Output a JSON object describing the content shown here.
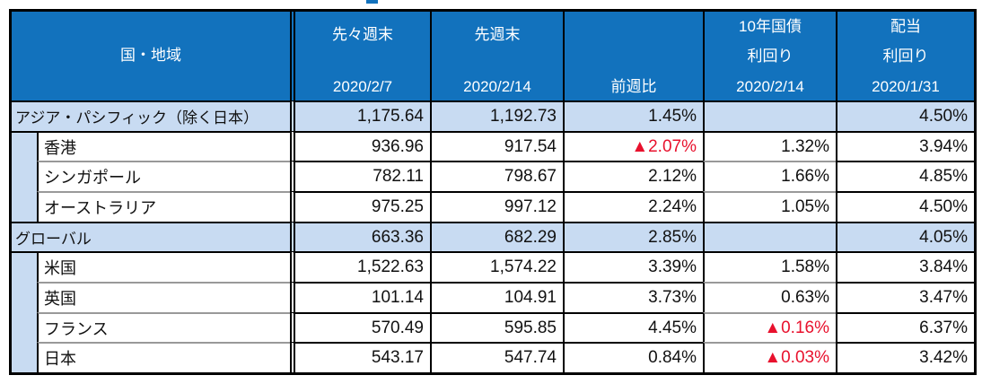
{
  "decor": {
    "top_dash": "cropped-title-remnant"
  },
  "colors": {
    "header_bg": "#1272bd",
    "highlight_row_bg": "#c8dbf2",
    "negative_value": "#e8112d",
    "grid_line": "#000000",
    "sub_separator": "#999999"
  },
  "header": {
    "region": "国・地域",
    "prev2_label": "先々週末",
    "prev2_date": "2020/2/7",
    "prev_label": "先週末",
    "prev_date": "2020/2/14",
    "wow_label": "前週比",
    "bond_label1": "10年国債",
    "bond_label2": "利回り",
    "bond_date": "2020/2/14",
    "div_label1": "配当",
    "div_label2": "利回り",
    "div_date": "2020/1/31"
  },
  "rows": [
    {
      "name": "アジア・パシフィック（除く日本）",
      "level": "category",
      "prev2": "1,175.64",
      "prev": "1,192.73",
      "wow": "1.45%",
      "wow_negative": false,
      "bond": "",
      "bond_negative": false,
      "div": "4.50%"
    },
    {
      "name": "香港",
      "level": "sub",
      "prev2": "936.96",
      "prev": "917.54",
      "wow": "▲2.07%",
      "wow_negative": true,
      "bond": "1.32%",
      "bond_negative": false,
      "div": "3.94%"
    },
    {
      "name": "シンガポール",
      "level": "sub",
      "prev2": "782.11",
      "prev": "798.67",
      "wow": "2.12%",
      "wow_negative": false,
      "bond": "1.66%",
      "bond_negative": false,
      "div": "4.85%"
    },
    {
      "name": "オーストラリア",
      "level": "sub",
      "prev2": "975.25",
      "prev": "997.12",
      "wow": "2.24%",
      "wow_negative": false,
      "bond": "1.05%",
      "bond_negative": false,
      "div": "4.50%"
    },
    {
      "name": "グローバル",
      "level": "category",
      "prev2": "663.36",
      "prev": "682.29",
      "wow": "2.85%",
      "wow_negative": false,
      "bond": "",
      "bond_negative": false,
      "div": "4.05%"
    },
    {
      "name": "米国",
      "level": "sub",
      "prev2": "1,522.63",
      "prev": "1,574.22",
      "wow": "3.39%",
      "wow_negative": false,
      "bond": "1.58%",
      "bond_negative": false,
      "div": "3.84%"
    },
    {
      "name": "英国",
      "level": "sub",
      "prev2": "101.14",
      "prev": "104.91",
      "wow": "3.73%",
      "wow_negative": false,
      "bond": "0.63%",
      "bond_negative": false,
      "div": "3.47%"
    },
    {
      "name": "フランス",
      "level": "sub",
      "prev2": "570.49",
      "prev": "595.85",
      "wow": "4.45%",
      "wow_negative": false,
      "bond": "▲0.16%",
      "bond_negative": true,
      "div": "6.37%"
    },
    {
      "name": "日本",
      "level": "sub",
      "prev2": "543.17",
      "prev": "547.74",
      "wow": "0.84%",
      "wow_negative": false,
      "bond": "▲0.03%",
      "bond_negative": true,
      "div": "3.42%"
    }
  ]
}
